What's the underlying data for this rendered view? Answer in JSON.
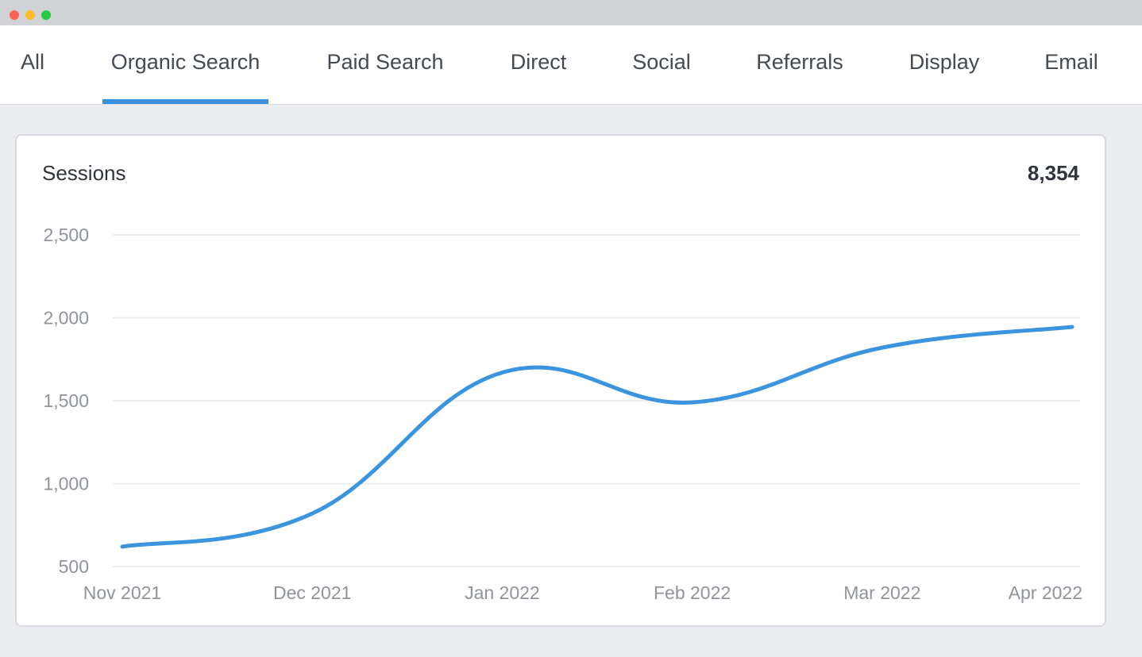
{
  "tabs": [
    {
      "label": "All",
      "active": false
    },
    {
      "label": "Organic Search",
      "active": true
    },
    {
      "label": "Paid Search",
      "active": false
    },
    {
      "label": "Direct",
      "active": false
    },
    {
      "label": "Social",
      "active": false
    },
    {
      "label": "Referrals",
      "active": false
    },
    {
      "label": "Display",
      "active": false
    },
    {
      "label": "Email",
      "active": false
    }
  ],
  "card": {
    "title": "Sessions",
    "total": "8,354"
  },
  "colors": {
    "accent": "#3a91dc",
    "line": "#3a94de"
  },
  "chart_data": {
    "type": "line",
    "title": "Sessions",
    "xlabel": "",
    "ylabel": "",
    "x": [
      "Nov 2021",
      "Dec 2021",
      "Jan 2022",
      "Feb 2022",
      "Mar 2022",
      "Apr 2022"
    ],
    "yticks": [
      500,
      1000,
      1500,
      2000,
      2500
    ],
    "ytick_labels": [
      "500",
      "1,000",
      "1,500",
      "2,000",
      "2,500"
    ],
    "ylim": [
      500,
      2500
    ],
    "grid": true,
    "legend": "none",
    "series": [
      {
        "values": [
          620,
          820,
          1670,
          1490,
          1820,
          1945
        ]
      }
    ]
  }
}
